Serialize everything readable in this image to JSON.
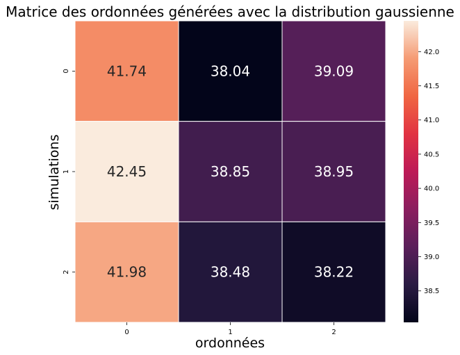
{
  "chart_data": {
    "type": "heatmap",
    "title": "Matrice des ordonnées générées avec la distribution gaussienne",
    "xlabel": "ordonnées",
    "ylabel": "simulations",
    "x_categories": [
      "0",
      "1",
      "2"
    ],
    "y_categories": [
      "0",
      "1",
      "2"
    ],
    "values": [
      [
        41.74,
        38.04,
        39.09
      ],
      [
        42.45,
        38.85,
        38.95
      ],
      [
        41.98,
        38.48,
        38.22
      ]
    ],
    "value_labels": [
      [
        "41.74",
        "38.04",
        "39.09"
      ],
      [
        "42.45",
        "38.85",
        "38.95"
      ],
      [
        "41.98",
        "38.48",
        "38.22"
      ]
    ],
    "colorbar": {
      "vmin": 38.04,
      "vmax": 42.45,
      "ticks": [
        38.5,
        39.0,
        39.5,
        40.0,
        40.5,
        41.0,
        41.5,
        42.0
      ],
      "tick_labels": [
        "38.5",
        "39.0",
        "39.5",
        "40.0",
        "40.5",
        "41.0",
        "41.5",
        "42.0"
      ],
      "colormap": "rocket"
    },
    "cell_border_color": "#ffffff"
  }
}
